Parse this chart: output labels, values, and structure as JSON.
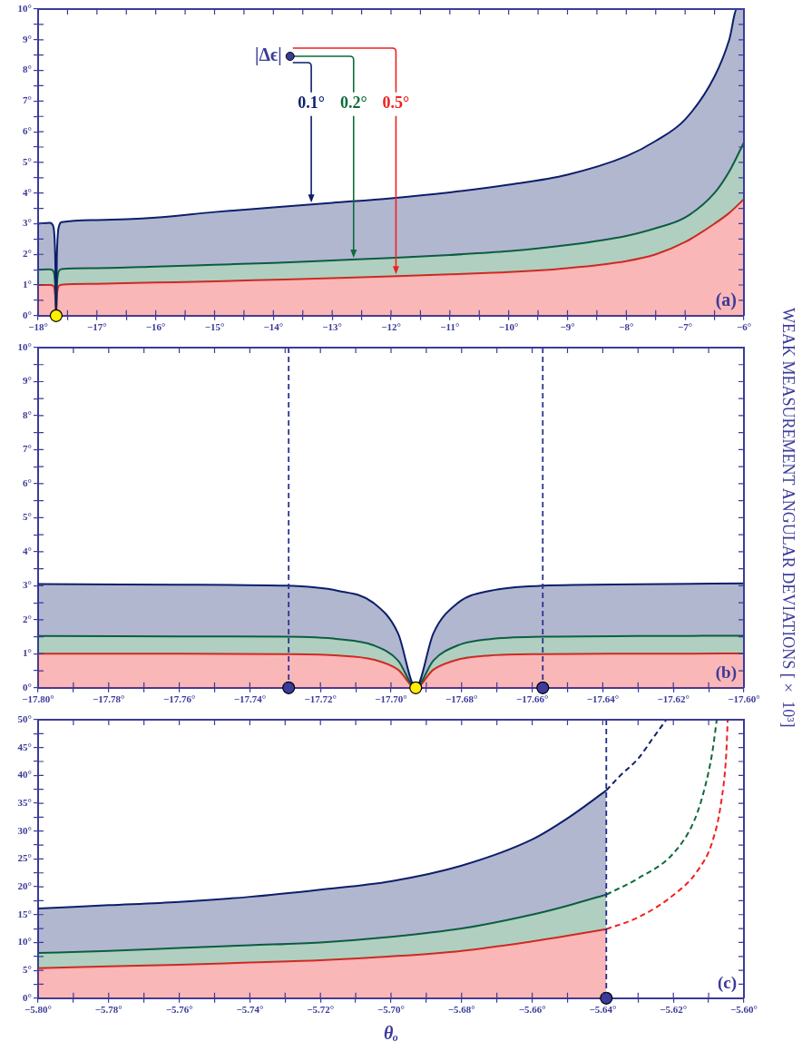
{
  "chart_data": [
    {
      "type": "area",
      "xlim": [
        -18,
        -6
      ],
      "ylim": [
        0,
        10
      ],
      "xticks": [
        {
          "value": -18,
          "label": "−18°"
        },
        {
          "value": -17.5,
          "label": null
        },
        {
          "value": -17,
          "label": "−17°"
        },
        {
          "value": -16.5,
          "label": null
        },
        {
          "value": -16,
          "label": "−16°"
        },
        {
          "value": -15.5,
          "label": null
        },
        {
          "value": -15,
          "label": "−15°"
        },
        {
          "value": -14.5,
          "label": null
        },
        {
          "value": -14,
          "label": "−14°"
        },
        {
          "value": -13.5,
          "label": null
        },
        {
          "value": -13,
          "label": "−13°"
        },
        {
          "value": -12.5,
          "label": null
        },
        {
          "value": -12,
          "label": "−12°"
        },
        {
          "value": -11.5,
          "label": null
        },
        {
          "value": -11,
          "label": "−11°"
        },
        {
          "value": -10.5,
          "label": null
        },
        {
          "value": -10,
          "label": "−10°"
        },
        {
          "value": -9.5,
          "label": null
        },
        {
          "value": -9,
          "label": "−9°"
        },
        {
          "value": -8.5,
          "label": null
        },
        {
          "value": -8,
          "label": "−8°"
        },
        {
          "value": -7.5,
          "label": null
        },
        {
          "value": -7,
          "label": "−7°"
        },
        {
          "value": -6.5,
          "label": null
        },
        {
          "value": -6,
          "label": "−6°"
        }
      ],
      "yticks": [
        {
          "value": 0,
          "label": "0°"
        },
        {
          "value": 0.5,
          "label": null
        },
        {
          "value": 1,
          "label": "1°"
        },
        {
          "value": 1.5,
          "label": null
        },
        {
          "value": 2,
          "label": "2°"
        },
        {
          "value": 2.5,
          "label": null
        },
        {
          "value": 3,
          "label": "3°"
        },
        {
          "value": 3.5,
          "label": null
        },
        {
          "value": 4,
          "label": "4°"
        },
        {
          "value": 4.5,
          "label": null
        },
        {
          "value": 5,
          "label": "5°"
        },
        {
          "value": 5.5,
          "label": null
        },
        {
          "value": 6,
          "label": "6°"
        },
        {
          "value": 6.5,
          "label": null
        },
        {
          "value": 7,
          "label": "7°"
        },
        {
          "value": 7.5,
          "label": null
        },
        {
          "value": 8,
          "label": "8°"
        },
        {
          "value": 8.5,
          "label": null
        },
        {
          "value": 9,
          "label": "9°"
        },
        {
          "value": 9.5,
          "label": null
        },
        {
          "value": 10,
          "label": "10°"
        }
      ],
      "x": [
        -18,
        -17.8,
        -17.74,
        -17.71,
        -17.693,
        -17.68,
        -17.64,
        -17.6,
        -17,
        -16,
        -15,
        -14,
        -13,
        -12,
        -11,
        -10,
        -9,
        -8,
        -7.5,
        -7,
        -6.5,
        -6.25,
        -6
      ],
      "series": [
        {
          "name": "0.1°",
          "color": "#0d1f6b",
          "x": [
            -18,
            -17.8,
            -17.74,
            -17.71,
            -17.693,
            -17.68,
            -17.64,
            -17.6,
            -17,
            -16,
            -15,
            -14,
            -13,
            -12,
            -11,
            -10,
            -9,
            -8,
            -7.5,
            -7,
            -6.5,
            -6.25,
            -6.12,
            -6
          ],
          "values": [
            3.0,
            3.03,
            2.9,
            2.0,
            0,
            2.0,
            2.95,
            3.05,
            3.12,
            3.2,
            3.38,
            3.53,
            3.68,
            3.83,
            4.02,
            4.27,
            4.6,
            5.2,
            5.7,
            6.4,
            7.8,
            9.0,
            10.0,
            10.0
          ]
        },
        {
          "name": "0.2°",
          "color": "#0b6b3a",
          "values": [
            1.5,
            1.51,
            1.45,
            1.0,
            0,
            1.0,
            1.47,
            1.52,
            1.55,
            1.6,
            1.66,
            1.72,
            1.8,
            1.88,
            1.98,
            2.1,
            2.3,
            2.6,
            2.85,
            3.2,
            4.0,
            4.7,
            5.65
          ]
        },
        {
          "name": "0.5°",
          "color": "#f02020",
          "values": [
            1.0,
            1.0,
            0.97,
            0.66,
            0,
            0.66,
            0.98,
            1.01,
            1.04,
            1.08,
            1.12,
            1.17,
            1.22,
            1.28,
            1.35,
            1.42,
            1.55,
            1.78,
            2.0,
            2.4,
            3.0,
            3.35,
            3.8
          ]
        },
        {
          "type": "scatter",
          "marker": "circle",
          "x": [
            -17.693
          ],
          "values": [
            0
          ],
          "colors": [
            "#ffee00"
          ]
        }
      ],
      "annotations": [
        "|Δϵ|",
        "(a)"
      ]
    },
    {
      "type": "area",
      "xlim": [
        -17.8,
        -17.6
      ],
      "ylim": [
        0,
        10
      ],
      "ylabel": "WEAK MEASUREMENT ANGULAR DEVIATIONS [× 10³]",
      "xticks": [
        {
          "value": -17.8,
          "label": "−17.80°"
        },
        {
          "value": -17.79,
          "label": null
        },
        {
          "value": -17.78,
          "label": "−17.78°"
        },
        {
          "value": -17.77,
          "label": null
        },
        {
          "value": -17.76,
          "label": "−17.76°"
        },
        {
          "value": -17.75,
          "label": null
        },
        {
          "value": -17.74,
          "label": "−17.74°"
        },
        {
          "value": -17.73,
          "label": null
        },
        {
          "value": -17.72,
          "label": "−17.72°"
        },
        {
          "value": -17.71,
          "label": null
        },
        {
          "value": -17.7,
          "label": "−17.70°"
        },
        {
          "value": -17.69,
          "label": null
        },
        {
          "value": -17.68,
          "label": "−17.68°"
        },
        {
          "value": -17.67,
          "label": null
        },
        {
          "value": -17.66,
          "label": "−17.66°"
        },
        {
          "value": -17.65,
          "label": null
        },
        {
          "value": -17.64,
          "label": "−17.64°"
        },
        {
          "value": -17.63,
          "label": null
        },
        {
          "value": -17.62,
          "label": "−17.62°"
        },
        {
          "value": -17.61,
          "label": null
        },
        {
          "value": -17.6,
          "label": "−17.60°"
        }
      ],
      "yticks": [
        {
          "value": 0,
          "label": "0°"
        },
        {
          "value": 0.5,
          "label": null
        },
        {
          "value": 1,
          "label": "1°"
        },
        {
          "value": 1.5,
          "label": null
        },
        {
          "value": 2,
          "label": "2°"
        },
        {
          "value": 2.5,
          "label": null
        },
        {
          "value": 3,
          "label": "3°"
        },
        {
          "value": 3.5,
          "label": null
        },
        {
          "value": 4,
          "label": "4°"
        },
        {
          "value": 4.5,
          "label": null
        },
        {
          "value": 5,
          "label": "5°"
        },
        {
          "value": 5.5,
          "label": null
        },
        {
          "value": 6,
          "label": "6°"
        },
        {
          "value": 6.5,
          "label": null
        },
        {
          "value": 7,
          "label": "7°"
        },
        {
          "value": 7.5,
          "label": null
        },
        {
          "value": 8,
          "label": "8°"
        },
        {
          "value": 8.5,
          "label": null
        },
        {
          "value": 9,
          "label": "9°"
        },
        {
          "value": 9.5,
          "label": null
        },
        {
          "value": 10,
          "label": "10°"
        }
      ],
      "x": [
        -17.8,
        -17.76,
        -17.73,
        -17.715,
        -17.705,
        -17.698,
        -17.693,
        -17.688,
        -17.681,
        -17.672,
        -17.657,
        -17.63,
        -17.6
      ],
      "series": [
        {
          "color": "#0d1f6b",
          "values": [
            3.05,
            3.03,
            3.0,
            2.85,
            2.5,
            1.6,
            0,
            1.6,
            2.5,
            2.85,
            3.0,
            3.04,
            3.07
          ]
        },
        {
          "color": "#0b6b3a",
          "values": [
            1.52,
            1.51,
            1.5,
            1.43,
            1.25,
            0.8,
            0,
            0.8,
            1.25,
            1.43,
            1.5,
            1.52,
            1.53
          ]
        },
        {
          "color": "#f02020",
          "values": [
            1.0,
            1.0,
            0.99,
            0.95,
            0.83,
            0.53,
            0,
            0.53,
            0.83,
            0.95,
            0.99,
            1.0,
            1.01
          ]
        },
        {
          "type": "scatter",
          "marker": "circle",
          "x": [
            -17.729,
            -17.693,
            -17.657
          ],
          "values": [
            0,
            0,
            0
          ],
          "colors": [
            "#3b3b9a",
            "#ffee00",
            "#3b3b9a"
          ]
        }
      ],
      "ref_lines": [
        {
          "axis": "x",
          "value": -17.729,
          "color": "#2e3192",
          "line_style": "dashed"
        },
        {
          "axis": "x",
          "value": -17.657,
          "color": "#2e3192",
          "line_style": "dashed"
        }
      ],
      "annotations": [
        "(b)"
      ]
    },
    {
      "type": "area",
      "xlim": [
        -5.8,
        -5.6
      ],
      "ylim": [
        0,
        50
      ],
      "xlabel": "θₒ",
      "xticks": [
        {
          "value": -5.8,
          "label": "−5.80°"
        },
        {
          "value": -5.79,
          "label": null
        },
        {
          "value": -5.78,
          "label": "−5.78°"
        },
        {
          "value": -5.77,
          "label": null
        },
        {
          "value": -5.76,
          "label": "−5.76°"
        },
        {
          "value": -5.75,
          "label": null
        },
        {
          "value": -5.74,
          "label": "−5.74°"
        },
        {
          "value": -5.73,
          "label": null
        },
        {
          "value": -5.72,
          "label": "−5.72°"
        },
        {
          "value": -5.71,
          "label": null
        },
        {
          "value": -5.7,
          "label": "−5.70°"
        },
        {
          "value": -5.69,
          "label": null
        },
        {
          "value": -5.68,
          "label": "−5.68°"
        },
        {
          "value": -5.67,
          "label": null
        },
        {
          "value": -5.66,
          "label": "−5.66°"
        },
        {
          "value": -5.65,
          "label": null
        },
        {
          "value": -5.64,
          "label": "−5.64°"
        },
        {
          "value": -5.63,
          "label": null
        },
        {
          "value": -5.62,
          "label": "−5.62°"
        },
        {
          "value": -5.61,
          "label": null
        },
        {
          "value": -5.6,
          "label": "−5.60°"
        }
      ],
      "yticks": [
        {
          "value": 0,
          "label": "0°"
        },
        {
          "value": 2.5,
          "label": null
        },
        {
          "value": 5,
          "label": "5°"
        },
        {
          "value": 7.5,
          "label": null
        },
        {
          "value": 10,
          "label": "10°"
        },
        {
          "value": 12.5,
          "label": null
        },
        {
          "value": 15,
          "label": "15°"
        },
        {
          "value": 17.5,
          "label": null
        },
        {
          "value": 20,
          "label": "20°"
        },
        {
          "value": 22.5,
          "label": null
        },
        {
          "value": 25,
          "label": "25°"
        },
        {
          "value": 27.5,
          "label": null
        },
        {
          "value": 30,
          "label": "30°"
        },
        {
          "value": 32.5,
          "label": null
        },
        {
          "value": 35,
          "label": "35°"
        },
        {
          "value": 37.5,
          "label": null
        },
        {
          "value": 40,
          "label": "40°"
        },
        {
          "value": 42.5,
          "label": null
        },
        {
          "value": 45,
          "label": "45°"
        },
        {
          "value": 47.5,
          "label": null
        },
        {
          "value": 50,
          "label": "50°"
        }
      ],
      "x": [
        -5.8,
        -5.78,
        -5.76,
        -5.74,
        -5.72,
        -5.7,
        -5.68,
        -5.66,
        -5.65,
        -5.639
      ],
      "series": [
        {
          "color": "#0d1f6b",
          "values": [
            16.1,
            16.7,
            17.3,
            18.2,
            19.5,
            21.0,
            23.8,
            28.5,
            32.3,
            37.3
          ]
        },
        {
          "color": "#0b6b3a",
          "values": [
            8.1,
            8.5,
            9.0,
            9.5,
            10.0,
            11.0,
            12.5,
            15.0,
            16.6,
            18.6
          ]
        },
        {
          "color": "#f02020",
          "values": [
            5.4,
            5.7,
            6.0,
            6.4,
            6.8,
            7.5,
            8.5,
            10.2,
            11.2,
            12.4
          ]
        },
        {
          "type": "line",
          "line_style": "dashed",
          "color": "#0d1f6b",
          "x": [
            -5.639,
            -5.635,
            -5.63,
            -5.626,
            -5.622
          ],
          "values": [
            37.3,
            40,
            43,
            46.5,
            50
          ]
        },
        {
          "type": "line",
          "line_style": "dashed",
          "color": "#0b6b3a",
          "x": [
            -5.639,
            -5.63,
            -5.62,
            -5.614,
            -5.611,
            -5.609,
            -5.6077
          ],
          "values": [
            18.6,
            21.5,
            26,
            32,
            38,
            44,
            50
          ]
        },
        {
          "type": "line",
          "line_style": "dashed",
          "color": "#f02020",
          "x": [
            -5.639,
            -5.63,
            -5.62,
            -5.613,
            -5.609,
            -5.6065,
            -5.605,
            -5.6046
          ],
          "values": [
            12.4,
            14.5,
            18.5,
            23,
            28,
            35,
            44,
            50
          ]
        },
        {
          "type": "scatter",
          "marker": "circle",
          "x": [
            -5.639
          ],
          "values": [
            0
          ],
          "colors": [
            "#3b3b9a"
          ]
        }
      ],
      "ref_lines": [
        {
          "axis": "x",
          "value": -5.639,
          "color": "#1f2a8a",
          "line_style": "dashed"
        }
      ],
      "annotations": [
        "(c)"
      ]
    }
  ]
}
